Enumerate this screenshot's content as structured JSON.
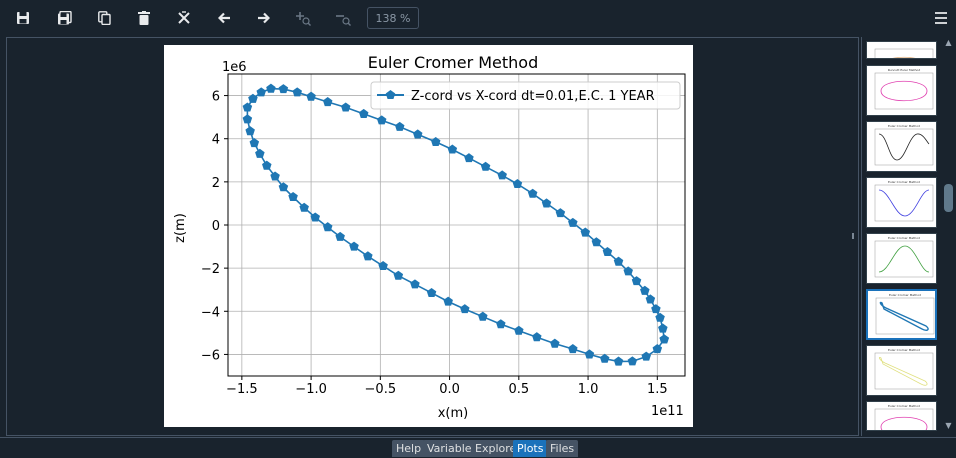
{
  "toolbar": {
    "buttons": [
      "save-icon",
      "save-all-icon",
      "copy-icon",
      "delete-icon",
      "delete-all-icon",
      "previous-icon",
      "next-icon",
      "zoom-in-icon",
      "zoom-out-icon"
    ],
    "zoom_level": "138 %",
    "menu_icon": "hamburger-menu-icon"
  },
  "tabs": [
    {
      "label": "Help",
      "active": false
    },
    {
      "label": "Variable Explorer",
      "active": false
    },
    {
      "label": "Plots",
      "active": true
    },
    {
      "label": "Files",
      "active": false
    }
  ],
  "colors": {
    "background": "#19232d",
    "border": "#455364",
    "accent": "#1a72bb",
    "series": "#1f77b4"
  },
  "chart_data": {
    "type": "line",
    "title": "Euler Cromer Method",
    "xlabel": "x(m)",
    "ylabel": "z(m)",
    "x_offset_label": "1e11",
    "y_offset_label": "1e6",
    "xlim": [
      -1.6,
      1.7
    ],
    "ylim": [
      -7,
      7
    ],
    "xticks": [
      -1.5,
      -1.0,
      -0.5,
      0.0,
      0.5,
      1.0,
      1.5
    ],
    "xtick_labels": [
      "−1.5",
      "−1.0",
      "−0.5",
      "0.0",
      "0.5",
      "1.0",
      "1.5"
    ],
    "yticks": [
      -6,
      -4,
      -2,
      0,
      2,
      4,
      6
    ],
    "ytick_labels": [
      "−6",
      "−4",
      "−2",
      "0",
      "2",
      "4",
      "6"
    ],
    "grid": true,
    "legend_position": "top-right",
    "series": [
      {
        "name": "Z-cord vs X-cord dt=0.01,E.C. 1 YEAR",
        "marker": "pentagon",
        "points": [
          [
            1.55,
            -5.3
          ],
          [
            1.54,
            -4.8
          ],
          [
            1.52,
            -4.3
          ],
          [
            1.49,
            -3.9
          ],
          [
            1.45,
            -3.45
          ],
          [
            1.41,
            -3.05
          ],
          [
            1.35,
            -2.6
          ],
          [
            1.29,
            -2.15
          ],
          [
            1.22,
            -1.7
          ],
          [
            1.14,
            -1.25
          ],
          [
            1.06,
            -0.8
          ],
          [
            0.98,
            -0.35
          ],
          [
            0.89,
            0.1
          ],
          [
            0.8,
            0.55
          ],
          [
            0.7,
            1.0
          ],
          [
            0.6,
            1.45
          ],
          [
            0.49,
            1.9
          ],
          [
            0.38,
            2.3
          ],
          [
            0.26,
            2.7
          ],
          [
            0.14,
            3.1
          ],
          [
            0.02,
            3.5
          ],
          [
            -0.1,
            3.85
          ],
          [
            -0.23,
            4.2
          ],
          [
            -0.36,
            4.55
          ],
          [
            -0.49,
            4.85
          ],
          [
            -0.62,
            5.15
          ],
          [
            -0.75,
            5.45
          ],
          [
            -0.88,
            5.7
          ],
          [
            -1.0,
            5.95
          ],
          [
            -1.1,
            6.15
          ],
          [
            -1.2,
            6.3
          ],
          [
            -1.29,
            6.32
          ],
          [
            -1.36,
            6.15
          ],
          [
            -1.42,
            5.85
          ],
          [
            -1.46,
            5.45
          ],
          [
            -1.46,
            4.9
          ],
          [
            -1.44,
            4.35
          ],
          [
            -1.41,
            3.8
          ],
          [
            -1.37,
            3.3
          ],
          [
            -1.32,
            2.75
          ],
          [
            -1.26,
            2.25
          ],
          [
            -1.2,
            1.75
          ],
          [
            -1.13,
            1.3
          ],
          [
            -1.05,
            0.8
          ],
          [
            -0.97,
            0.35
          ],
          [
            -0.88,
            -0.1
          ],
          [
            -0.79,
            -0.55
          ],
          [
            -0.69,
            -1.0
          ],
          [
            -0.59,
            -1.45
          ],
          [
            -0.48,
            -1.9
          ],
          [
            -0.37,
            -2.35
          ],
          [
            -0.25,
            -2.75
          ],
          [
            -0.13,
            -3.15
          ],
          [
            -0.01,
            -3.55
          ],
          [
            0.11,
            -3.9
          ],
          [
            0.24,
            -4.25
          ],
          [
            0.37,
            -4.6
          ],
          [
            0.5,
            -4.9
          ],
          [
            0.63,
            -5.2
          ],
          [
            0.76,
            -5.5
          ],
          [
            0.89,
            -5.75
          ],
          [
            1.01,
            -6.0
          ],
          [
            1.12,
            -6.2
          ],
          [
            1.22,
            -6.33
          ],
          [
            1.32,
            -6.32
          ],
          [
            1.42,
            -6.1
          ],
          [
            1.5,
            -5.75
          ],
          [
            1.55,
            -5.3
          ]
        ]
      }
    ]
  },
  "thumbnails": [
    {
      "title": "",
      "stroke": "#e0b080",
      "kind": "ellipse"
    },
    {
      "title": "Runcutt Euler Method",
      "stroke": "#e040b0",
      "kind": "ellipse"
    },
    {
      "title": "Euler Cromer Method",
      "stroke": "#222222",
      "kind": "wave"
    },
    {
      "title": "Euler Cromer Method",
      "stroke": "#4040e0",
      "kind": "dip"
    },
    {
      "title": "Euler Cromer Method",
      "stroke": "#40a040",
      "kind": "hump"
    },
    {
      "title": "Euler Cromer Method",
      "stroke": "#1f77b4",
      "kind": "tilted"
    },
    {
      "title": "Euler Cromer Method",
      "stroke": "#e0e080",
      "kind": "tilted-light"
    },
    {
      "title": "Euler Cromer Method",
      "stroke": "#e040b0",
      "kind": "ellipse"
    }
  ]
}
